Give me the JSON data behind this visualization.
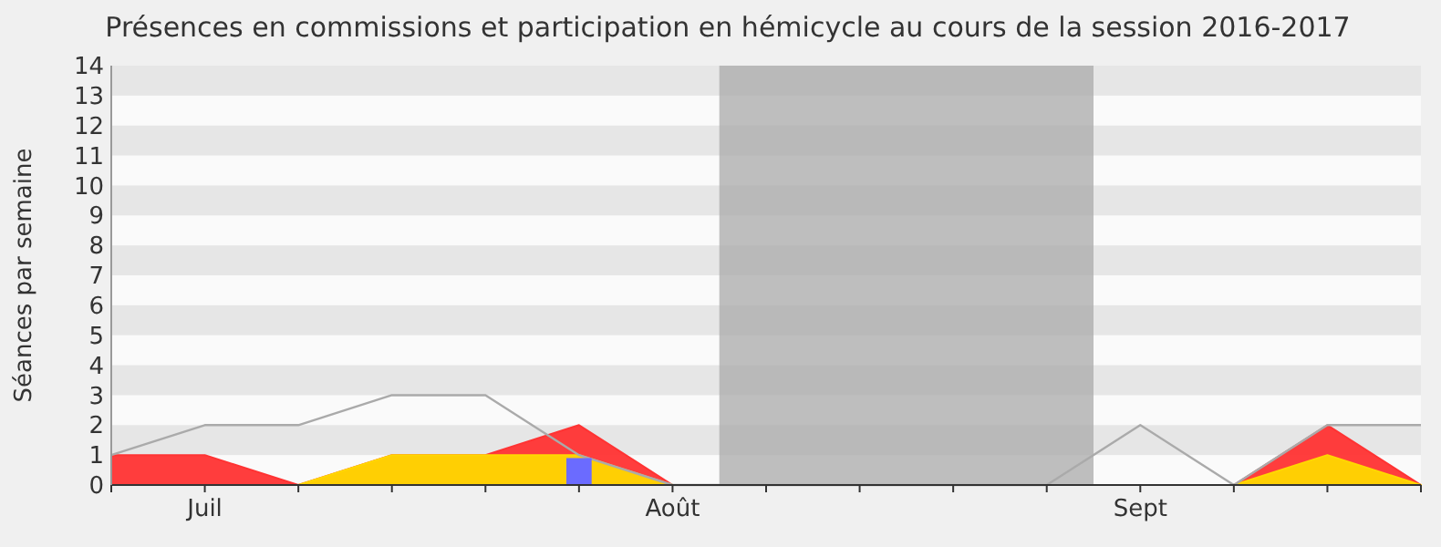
{
  "chart_data": {
    "type": "area",
    "title": "Présences en commissions et participation en hémicycle au cours de la session 2016-2017",
    "ylabel": "Séances par semaine",
    "categories": [
      null,
      "Juil",
      null,
      null,
      null,
      null,
      "Août",
      null,
      null,
      null,
      null,
      "Sept",
      null,
      null,
      null
    ],
    "ylim": [
      0,
      14
    ],
    "yticks": [
      0,
      1,
      2,
      3,
      4,
      5,
      6,
      7,
      8,
      9,
      10,
      11,
      12,
      13,
      14
    ],
    "series": [
      {
        "color": "#ff3333",
        "values": [
          1,
          1,
          0,
          1,
          1,
          2,
          0,
          0,
          0,
          0,
          0,
          0,
          0,
          2,
          0
        ]
      },
      {
        "color": "#ffd700",
        "values": [
          0,
          0,
          0,
          1,
          1,
          1,
          0,
          0,
          0,
          0,
          0,
          0,
          0,
          1,
          0
        ]
      },
      {
        "type": "line",
        "color": "#aaaaaa",
        "values": [
          1,
          2,
          2,
          3,
          3,
          1,
          0,
          0,
          0,
          0,
          0,
          2,
          0,
          2,
          2
        ]
      },
      {
        "type": "bar",
        "color": "#6b6bff",
        "values": [
          null,
          null,
          null,
          null,
          null,
          0.9,
          null,
          null,
          null,
          null,
          null,
          null,
          null,
          null,
          null
        ]
      }
    ]
  }
}
